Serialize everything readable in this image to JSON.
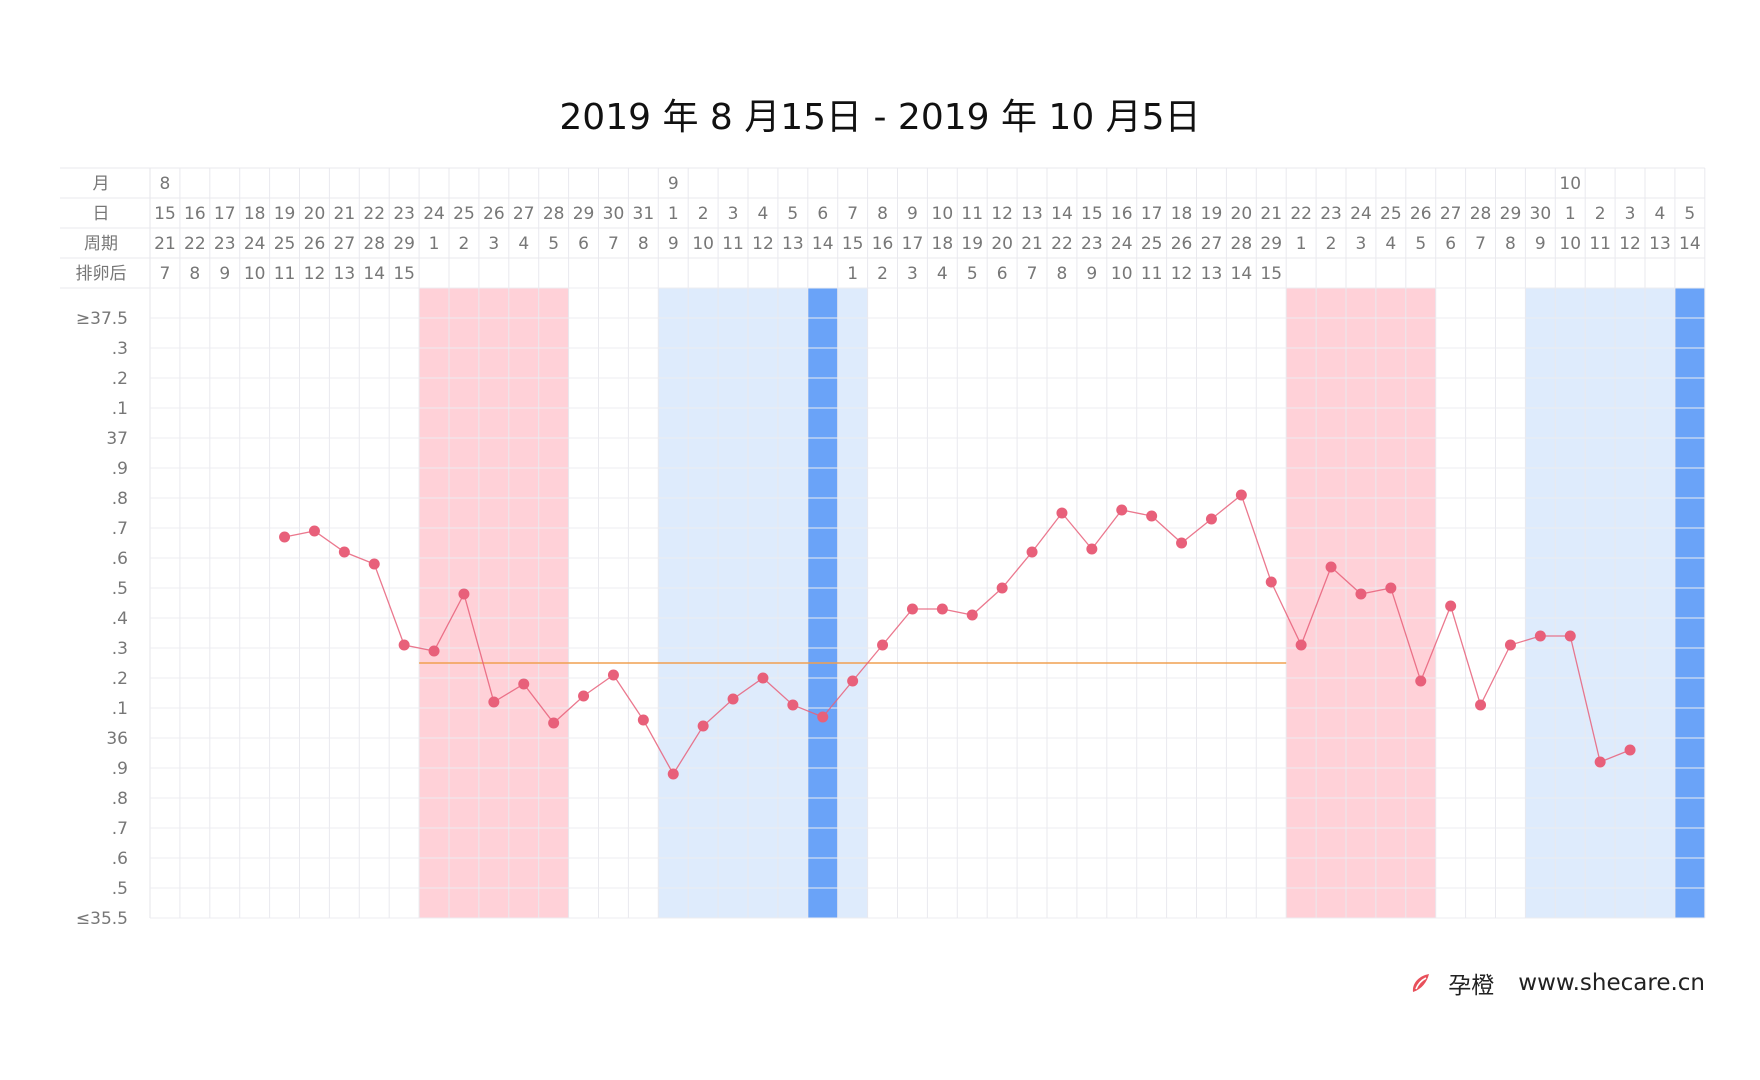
{
  "chart_data": {
    "type": "line",
    "title": "2019 年 8 月15日 - 2019 年 10 月5日",
    "row_labels": {
      "month": "月",
      "day": "日",
      "cycle": "周期",
      "post_ovulation": "排卵后"
    },
    "y_tick_labels": [
      "≥37.5",
      ".3",
      ".2",
      ".1",
      "37",
      ".9",
      ".8",
      ".7",
      ".6",
      ".5",
      ".4",
      ".3",
      ".2",
      ".1",
      "36",
      ".9",
      ".8",
      ".7",
      ".6",
      ".5",
      "≤35.5"
    ],
    "ylim": [
      35.5,
      37.5
    ],
    "month_markers": [
      {
        "index": 0,
        "label": "8"
      },
      {
        "index": 17,
        "label": "9"
      },
      {
        "index": 47,
        "label": "10"
      }
    ],
    "x_days": [
      15,
      16,
      17,
      18,
      19,
      20,
      21,
      22,
      23,
      24,
      25,
      26,
      27,
      28,
      29,
      30,
      31,
      1,
      2,
      3,
      4,
      5,
      6,
      7,
      8,
      9,
      10,
      11,
      12,
      13,
      14,
      15,
      16,
      17,
      18,
      19,
      20,
      21,
      22,
      23,
      24,
      25,
      26,
      27,
      28,
      29,
      30,
      1,
      2,
      3,
      4,
      5
    ],
    "cycle_day": [
      "21",
      "22",
      "23",
      "24",
      "25",
      "26",
      "27",
      "28",
      "29",
      "1",
      "2",
      "3",
      "4",
      "5",
      "6",
      "7",
      "8",
      "9",
      "10",
      "11",
      "12",
      "13",
      "14",
      "15",
      "16",
      "17",
      "18",
      "19",
      "20",
      "21",
      "22",
      "23",
      "24",
      "25",
      "26",
      "27",
      "28",
      "29",
      "1",
      "2",
      "3",
      "4",
      "5",
      "6",
      "7",
      "8",
      "9",
      "10",
      "11",
      "12",
      "13",
      "14"
    ],
    "post_ovulation_day": [
      "7",
      "8",
      "9",
      "10",
      "11",
      "12",
      "13",
      "14",
      "15",
      "",
      "",
      "",
      "",
      "",
      "",
      "",
      "",
      "",
      "",
      "",
      "",
      "",
      "",
      "1",
      "2",
      "3",
      "4",
      "5",
      "6",
      "7",
      "8",
      "9",
      "10",
      "11",
      "12",
      "13",
      "14",
      "15",
      "",
      "",
      "",
      "",
      "",
      "",
      "",
      "",
      "",
      "",
      "",
      "",
      "",
      ""
    ],
    "series": [
      {
        "values": [
          null,
          null,
          null,
          null,
          36.77,
          36.79,
          36.72,
          36.68,
          36.41,
          36.39,
          36.58,
          36.22,
          36.28,
          36.15,
          36.24,
          36.31,
          36.16,
          35.98,
          36.14,
          36.23,
          36.3,
          36.21,
          36.17,
          36.29,
          36.41,
          36.53,
          36.53,
          36.51,
          36.6,
          36.72,
          36.85,
          36.73,
          36.86,
          36.84,
          36.75,
          36.83,
          36.91,
          36.62,
          36.41,
          36.67,
          36.58,
          36.6,
          36.29,
          36.54,
          36.21,
          36.41,
          36.44,
          36.44,
          36.02,
          36.06,
          null,
          null
        ],
        "color": "#E8607A"
      }
    ],
    "cover_line": {
      "value": 36.35,
      "start_index": 9,
      "end_index": 38,
      "color": "#F0A050"
    },
    "highlight_bands": [
      {
        "type": "period",
        "start_index": 9,
        "end_index": 13,
        "color": "#FFD1D8"
      },
      {
        "type": "fertile",
        "start_index": 17,
        "end_index": 23,
        "color": "#DEEBFC"
      },
      {
        "type": "ovulation",
        "start_index": 22,
        "end_index": 22,
        "color": "#6AA3F8"
      },
      {
        "type": "period",
        "start_index": 38,
        "end_index": 42,
        "color": "#FFD1D8"
      },
      {
        "type": "fertile",
        "start_index": 46,
        "end_index": 51,
        "color": "#DEEBFC"
      },
      {
        "type": "ovulation",
        "start_index": 51,
        "end_index": 51,
        "color": "#6AA3F8"
      }
    ],
    "grid": true
  },
  "brand": {
    "app_name": "孕橙",
    "url": "www.shecare.cn",
    "logo_icon": "orange-slice-icon",
    "accent": "#E8505B"
  }
}
